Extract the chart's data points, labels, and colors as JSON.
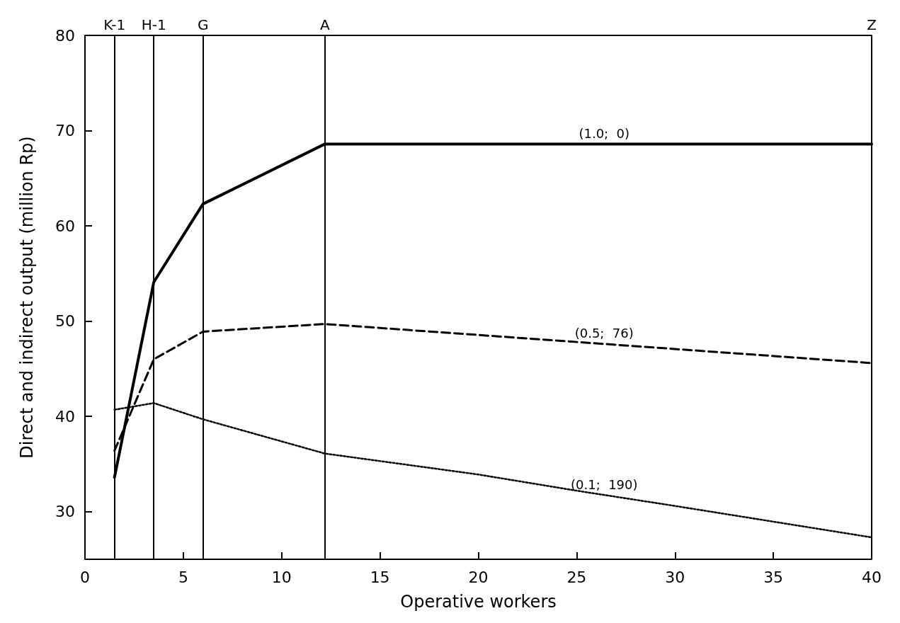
{
  "chart_data": {
    "type": "line",
    "xlabel": "Operative workers",
    "ylabel": "Direct and indirect output (million Rp)",
    "xlim": [
      0,
      40
    ],
    "xticks": [
      0,
      5,
      10,
      15,
      20,
      25,
      30,
      35,
      40
    ],
    "ylim": [
      25,
      80
    ],
    "yticks": [
      30,
      40,
      50,
      60,
      70,
      80
    ],
    "grid": false,
    "legend": false,
    "marker": "none",
    "series": [
      {
        "name": "(1.0;  0)",
        "x": [
          1.5,
          3.5,
          6,
          12.2,
          40
        ],
        "values": [
          33.6,
          54.1,
          62.3,
          68.6,
          68.6
        ],
        "color": "#000000",
        "line_style": "solid"
      },
      {
        "name": "(0.5;  76)",
        "x": [
          1.5,
          3.5,
          6,
          12.2,
          40
        ],
        "values": [
          36.4,
          46,
          48.9,
          49.7,
          45.6
        ],
        "color": "#000000",
        "line_style": "dashed"
      },
      {
        "name": "(0.1;  190)",
        "x": [
          1.5,
          3.5,
          6,
          12.2,
          20,
          25,
          30,
          40
        ],
        "values": [
          40.7,
          41.4,
          39.7,
          36.1,
          33.9,
          32.2,
          30.6,
          27.3
        ],
        "color": "#000000",
        "line_style": "dotted"
      }
    ],
    "ref_lines": [
      {
        "axis": "x",
        "value": 1.5,
        "label": "K-1"
      },
      {
        "axis": "x",
        "value": 3.5,
        "label": "H-1"
      },
      {
        "axis": "x",
        "value": 6,
        "label": "G"
      },
      {
        "axis": "x",
        "value": 12.2,
        "label": "A"
      },
      {
        "axis": "x",
        "value": 40,
        "label": "Z"
      }
    ]
  }
}
